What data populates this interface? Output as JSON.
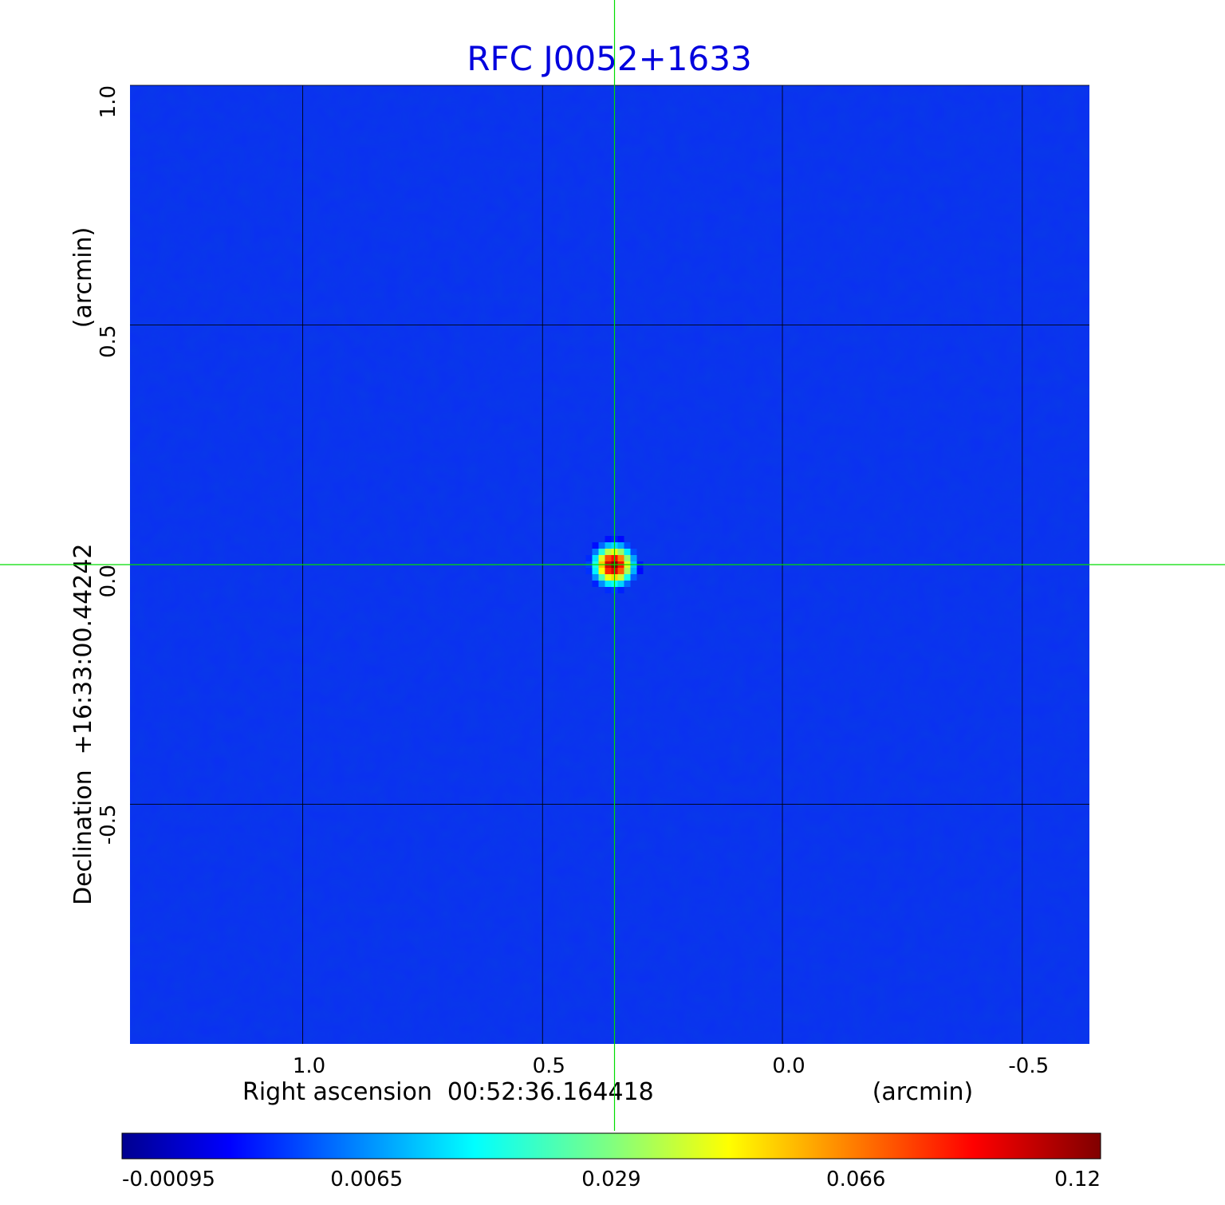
{
  "chart_data": {
    "type": "heatmap",
    "title": "RFC J0052+1633",
    "title_color": "#0000dd",
    "xlabel": "Right ascension  00:52:36.164418",
    "xunit": "(arcmin)",
    "ylabel": "Declination  +16:33:00.44242",
    "yunit": "(arcmin)",
    "xlim": [
      1.36,
      -0.64
    ],
    "ylim": [
      -1.0,
      1.0
    ],
    "x_ticks": [
      1.0,
      0.5,
      0.0,
      -0.5
    ],
    "x_tick_labels": [
      "1.0",
      "0.5",
      "0.0",
      "-0.5"
    ],
    "y_ticks": [
      1.0,
      0.5,
      0.0,
      -0.5
    ],
    "y_tick_labels": [
      "1.0",
      "0.5",
      "0.0",
      "-0.5"
    ],
    "grid": true,
    "grid_color": "#000000",
    "crosshair": {
      "x": 0.35,
      "y": 0.0,
      "color": "#00dd00"
    },
    "source": {
      "x": 0.35,
      "y": 0.0,
      "peak": 0.12
    },
    "background_level": -0.0005,
    "colormap": "jet",
    "colorbar": {
      "orientation": "horizontal",
      "ticks": [
        -0.00095,
        0.0065,
        0.029,
        0.066,
        0.12
      ],
      "tick_labels": [
        "-0.00095",
        "0.0065",
        "0.029",
        "0.066",
        "0.12"
      ]
    }
  }
}
